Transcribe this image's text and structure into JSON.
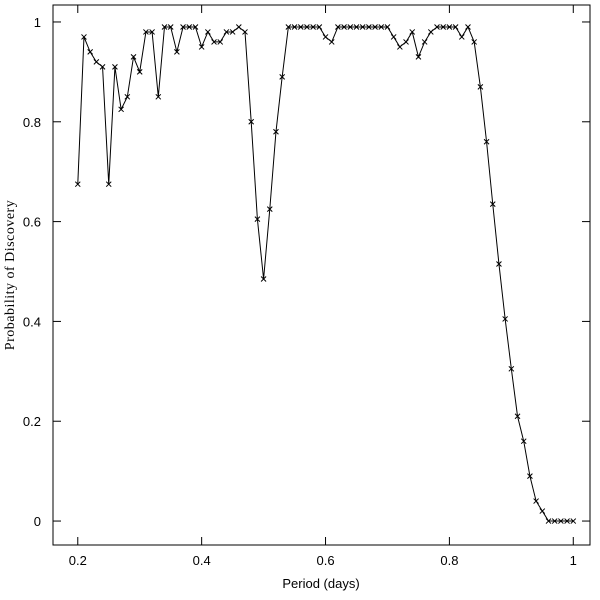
{
  "chart_data": {
    "type": "line",
    "xlabel": "Period (days)",
    "ylabel": "Probability of Discovery",
    "x": [
      0.2,
      0.21,
      0.22,
      0.23,
      0.24,
      0.25,
      0.26,
      0.27,
      0.28,
      0.29,
      0.3,
      0.31,
      0.32,
      0.33,
      0.34,
      0.35,
      0.36,
      0.37,
      0.38,
      0.39,
      0.4,
      0.41,
      0.42,
      0.43,
      0.44,
      0.45,
      0.46,
      0.47,
      0.48,
      0.49,
      0.5,
      0.51,
      0.52,
      0.53,
      0.54,
      0.55,
      0.56,
      0.57,
      0.58,
      0.59,
      0.6,
      0.61,
      0.62,
      0.63,
      0.64,
      0.65,
      0.66,
      0.67,
      0.68,
      0.69,
      0.7,
      0.71,
      0.72,
      0.73,
      0.74,
      0.75,
      0.76,
      0.77,
      0.78,
      0.79,
      0.8,
      0.81,
      0.82,
      0.83,
      0.84,
      0.85,
      0.86,
      0.87,
      0.88,
      0.89,
      0.9,
      0.91,
      0.92,
      0.93,
      0.94,
      0.95,
      0.96,
      0.97,
      0.98,
      0.99,
      1.0
    ],
    "values": [
      0.675,
      0.97,
      0.94,
      0.92,
      0.91,
      0.675,
      0.91,
      0.825,
      0.85,
      0.93,
      0.9,
      0.98,
      0.98,
      0.85,
      0.99,
      0.99,
      0.94,
      0.99,
      0.99,
      0.99,
      0.95,
      0.98,
      0.96,
      0.96,
      0.98,
      0.98,
      0.99,
      0.98,
      0.8,
      0.605,
      0.485,
      0.625,
      0.78,
      0.89,
      0.99,
      0.99,
      0.99,
      0.99,
      0.99,
      0.99,
      0.97,
      0.96,
      0.99,
      0.99,
      0.99,
      0.99,
      0.99,
      0.99,
      0.99,
      0.99,
      0.99,
      0.97,
      0.95,
      0.96,
      0.98,
      0.93,
      0.96,
      0.98,
      0.99,
      0.99,
      0.99,
      0.99,
      0.97,
      0.99,
      0.96,
      0.87,
      0.76,
      0.635,
      0.515,
      0.405,
      0.305,
      0.21,
      0.16,
      0.09,
      0.04,
      0.02,
      0,
      0,
      0,
      0,
      0
    ],
    "color": "#000000",
    "xlim": [
      0.16,
      1.027
    ],
    "ylim": [
      -0.048,
      1.034
    ],
    "xticks": [
      0.2,
      0.4,
      0.6,
      0.8,
      1
    ],
    "yticks": [
      0,
      0.2,
      0.4,
      0.6,
      0.8,
      1
    ]
  }
}
